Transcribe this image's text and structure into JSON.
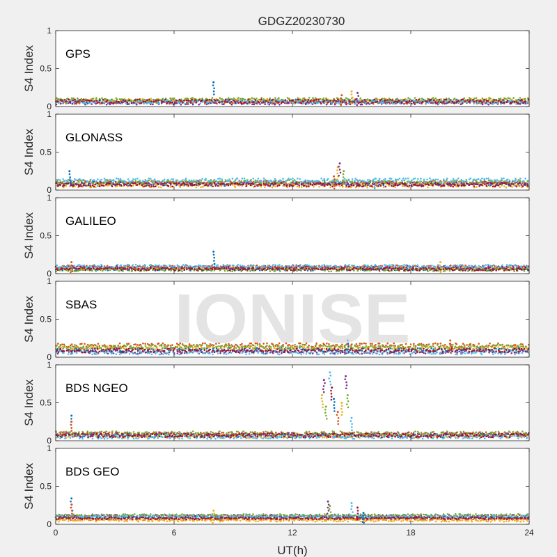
{
  "chart_data": {
    "type": "scatter",
    "title": "GDGZ20230730",
    "xlabel": "UT(h)",
    "ylabel": "S4 Index",
    "xlim": [
      0,
      24
    ],
    "ylim": [
      0,
      1
    ],
    "x_ticks": [
      "0",
      "6",
      "12",
      "18",
      "24"
    ],
    "y_ticks": [
      "0",
      "0.5",
      "1"
    ],
    "watermark": "IONISE",
    "grid": false,
    "series_colors": [
      "#0072BD",
      "#D95319",
      "#EDB120",
      "#7E2F8E",
      "#77AC30",
      "#4DBEEE",
      "#A2142F"
    ],
    "panels": [
      {
        "label": "GPS",
        "baseline": [
          0.07,
          0.06,
          0.08,
          0.05,
          0.09,
          0.06,
          0.07
        ],
        "noise": 0.025,
        "bursts": [
          {
            "x": 8.0,
            "y": 0.32
          },
          {
            "x": 14.5,
            "y": 0.15
          },
          {
            "x": 15.0,
            "y": 0.2
          },
          {
            "x": 15.3,
            "y": 0.18
          }
        ]
      },
      {
        "label": "GLONASS",
        "baseline": [
          0.08,
          0.1,
          0.06,
          0.09,
          0.11,
          0.13,
          0.07
        ],
        "noise": 0.025,
        "bursts": [
          {
            "x": 0.7,
            "y": 0.25
          },
          {
            "x": 14.1,
            "y": 0.18
          },
          {
            "x": 14.3,
            "y": 0.3
          },
          {
            "x": 14.4,
            "y": 0.35
          },
          {
            "x": 14.6,
            "y": 0.25
          },
          {
            "x": 16.2,
            "y": 0.15
          }
        ]
      },
      {
        "label": "GALILEO",
        "baseline": [
          0.06,
          0.09,
          0.07,
          0.08,
          0.05,
          0.1,
          0.06
        ],
        "noise": 0.02,
        "bursts": [
          {
            "x": 8.0,
            "y": 0.29
          },
          {
            "x": 0.8,
            "y": 0.15
          },
          {
            "x": 19.5,
            "y": 0.15
          }
        ]
      },
      {
        "label": "SBAS",
        "baseline": [
          0.1,
          0.16,
          0.12,
          0.07,
          0.14,
          0.06,
          0.09
        ],
        "noise": 0.025,
        "bursts": [
          {
            "x": 14.8,
            "y": 0.22
          },
          {
            "x": 20.0,
            "y": 0.22
          }
        ]
      },
      {
        "label": "BDS NGEO",
        "baseline": [
          0.07,
          0.09,
          0.06,
          0.08,
          0.1,
          0.05,
          0.07
        ],
        "noise": 0.025,
        "bursts": [
          {
            "x": 0.8,
            "y": 0.33
          },
          {
            "x": 0.8,
            "y": 0.25
          },
          {
            "x": 13.5,
            "y": 0.6
          },
          {
            "x": 13.6,
            "y": 0.8
          },
          {
            "x": 13.7,
            "y": 0.45
          },
          {
            "x": 13.9,
            "y": 0.9
          },
          {
            "x": 14.0,
            "y": 0.7
          },
          {
            "x": 14.1,
            "y": 0.55
          },
          {
            "x": 14.3,
            "y": 0.38
          },
          {
            "x": 14.5,
            "y": 0.5
          },
          {
            "x": 14.7,
            "y": 0.85
          },
          {
            "x": 14.8,
            "y": 0.6
          },
          {
            "x": 15.0,
            "y": 0.3
          }
        ]
      },
      {
        "label": "BDS GEO",
        "baseline": [
          0.09,
          0.07,
          0.05,
          0.11,
          0.12,
          0.1,
          0.08
        ],
        "noise": 0.015,
        "bursts": [
          {
            "x": 0.8,
            "y": 0.34
          },
          {
            "x": 0.8,
            "y": 0.26
          },
          {
            "x": 8.0,
            "y": 0.18
          },
          {
            "x": 13.8,
            "y": 0.3
          },
          {
            "x": 13.9,
            "y": 0.24
          },
          {
            "x": 15.0,
            "y": 0.28
          },
          {
            "x": 15.3,
            "y": 0.22
          },
          {
            "x": 15.6,
            "y": 0.15
          }
        ]
      }
    ]
  }
}
